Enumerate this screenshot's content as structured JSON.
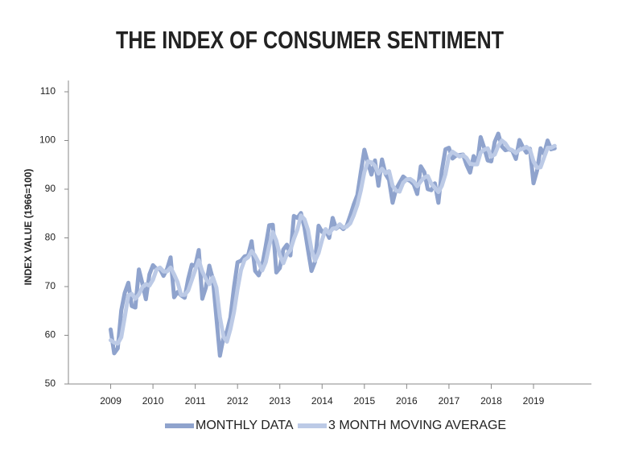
{
  "chart_data": {
    "type": "line",
    "title": "THE INDEX OF CONSUMER SENTIMENT",
    "y_label": "INDEX VALUE (1966=100)",
    "x": [
      2009,
      2009.083,
      2009.167,
      2009.25,
      2009.333,
      2009.417,
      2009.5,
      2009.583,
      2009.667,
      2009.75,
      2009.833,
      2009.917,
      2010,
      2010.083,
      2010.167,
      2010.25,
      2010.333,
      2010.417,
      2010.5,
      2010.583,
      2010.667,
      2010.75,
      2010.833,
      2010.917,
      2011,
      2011.083,
      2011.167,
      2011.25,
      2011.333,
      2011.417,
      2011.5,
      2011.583,
      2011.667,
      2011.75,
      2011.833,
      2011.917,
      2012,
      2012.083,
      2012.167,
      2012.25,
      2012.333,
      2012.417,
      2012.5,
      2012.583,
      2012.667,
      2012.75,
      2012.833,
      2012.917,
      2013,
      2013.083,
      2013.167,
      2013.25,
      2013.333,
      2013.417,
      2013.5,
      2013.583,
      2013.667,
      2013.75,
      2013.833,
      2013.917,
      2014,
      2014.083,
      2014.167,
      2014.25,
      2014.333,
      2014.417,
      2014.5,
      2014.583,
      2014.667,
      2014.75,
      2014.833,
      2014.917,
      2015,
      2015.083,
      2015.167,
      2015.25,
      2015.333,
      2015.417,
      2015.5,
      2015.583,
      2015.667,
      2015.75,
      2015.833,
      2015.917,
      2016,
      2016.083,
      2016.167,
      2016.25,
      2016.333,
      2016.417,
      2016.5,
      2016.583,
      2016.667,
      2016.75,
      2016.833,
      2016.917,
      2017,
      2017.083,
      2017.167,
      2017.25,
      2017.333,
      2017.417,
      2017.5,
      2017.583,
      2017.667,
      2017.75,
      2017.833,
      2017.917,
      2018,
      2018.083,
      2018.167,
      2018.25,
      2018.333,
      2018.417,
      2018.5,
      2018.583,
      2018.667,
      2018.75,
      2018.833,
      2018.917,
      2019,
      2019.083,
      2019.167,
      2019.25,
      2019.333,
      2019.417,
      2019.5
    ],
    "series": [
      {
        "name": "MONTHLY DATA",
        "color": "#8fa3cd",
        "values": [
          61.2,
          56.3,
          57.3,
          65.1,
          68.7,
          70.8,
          66.0,
          65.7,
          73.5,
          70.6,
          67.4,
          72.5,
          74.4,
          73.6,
          73.6,
          72.2,
          73.6,
          76.0,
          67.8,
          68.9,
          68.2,
          67.7,
          71.6,
          74.5,
          74.2,
          77.5,
          67.5,
          69.8,
          74.3,
          71.5,
          63.7,
          55.8,
          59.5,
          60.8,
          63.7,
          69.9,
          75.0,
          75.3,
          76.2,
          76.4,
          79.3,
          73.2,
          72.3,
          74.3,
          78.3,
          82.6,
          82.7,
          72.9,
          73.8,
          77.6,
          78.6,
          76.4,
          84.5,
          84.1,
          85.1,
          82.1,
          77.5,
          73.2,
          75.1,
          82.5,
          81.2,
          81.6,
          80.0,
          84.1,
          81.9,
          82.5,
          81.8,
          82.5,
          84.6,
          86.9,
          88.8,
          93.6,
          98.1,
          95.4,
          93.0,
          95.9,
          90.7,
          96.1,
          93.1,
          91.9,
          87.2,
          90.0,
          91.3,
          92.6,
          92.0,
          91.7,
          91.0,
          89.0,
          94.7,
          93.5,
          90.0,
          89.8,
          91.2,
          87.2,
          93.8,
          98.2,
          98.5,
          96.3,
          96.9,
          97.0,
          97.1,
          95.0,
          93.4,
          96.8,
          95.1,
          100.7,
          98.5,
          95.9,
          95.7,
          99.7,
          101.4,
          98.8,
          98.0,
          98.2,
          97.9,
          96.2,
          100.1,
          98.6,
          97.5,
          98.3,
          91.2,
          93.8,
          98.4,
          97.2,
          100.0,
          98.2,
          98.4
        ]
      },
      {
        "name": "3 MONTH MOVING AVERAGE",
        "color": "#bccae6",
        "values": [
          59.0,
          58.5,
          58.3,
          59.6,
          63.7,
          68.2,
          68.5,
          67.5,
          68.4,
          69.9,
          70.5,
          70.2,
          71.4,
          73.5,
          73.9,
          73.1,
          73.1,
          73.9,
          72.5,
          70.9,
          68.3,
          68.3,
          69.2,
          71.3,
          73.4,
          75.4,
          73.1,
          71.6,
          70.5,
          71.9,
          69.8,
          63.7,
          59.7,
          58.7,
          61.3,
          64.8,
          69.5,
          73.4,
          75.5,
          76.0,
          77.3,
          76.3,
          74.9,
          73.3,
          75.0,
          78.4,
          81.2,
          79.4,
          76.5,
          74.8,
          76.7,
          77.5,
          79.8,
          81.7,
          84.6,
          83.8,
          81.6,
          77.6,
          75.3,
          76.9,
          79.6,
          81.8,
          80.9,
          81.9,
          82.0,
          82.8,
          82.1,
          82.3,
          83.0,
          84.7,
          86.8,
          89.8,
          93.5,
          95.7,
          95.5,
          94.8,
          93.2,
          94.2,
          93.3,
          93.7,
          90.7,
          89.7,
          89.5,
          91.3,
          92.0,
          92.1,
          91.6,
          90.6,
          91.6,
          92.4,
          92.7,
          91.1,
          90.3,
          89.4,
          90.7,
          93.1,
          96.8,
          97.7,
          97.2,
          96.7,
          97.0,
          96.4,
          95.2,
          95.1,
          95.1,
          97.5,
          98.1,
          98.4,
          96.7,
          97.1,
          98.9,
          100.0,
          99.4,
          98.3,
          98.0,
          97.4,
          98.1,
          98.3,
          98.7,
          98.1,
          95.7,
          94.4,
          94.5,
          96.5,
          98.5,
          98.5,
          98.9
        ]
      }
    ],
    "xlim": [
      2008,
      2020.37
    ],
    "xticks": [
      2009,
      2010,
      2011,
      2012,
      2013,
      2014,
      2015,
      2016,
      2017,
      2018,
      2019
    ],
    "ylim": [
      50,
      110
    ],
    "yticks": [
      50,
      60,
      70,
      80,
      90,
      100,
      110
    ],
    "grid": false,
    "legend": "bottom"
  }
}
